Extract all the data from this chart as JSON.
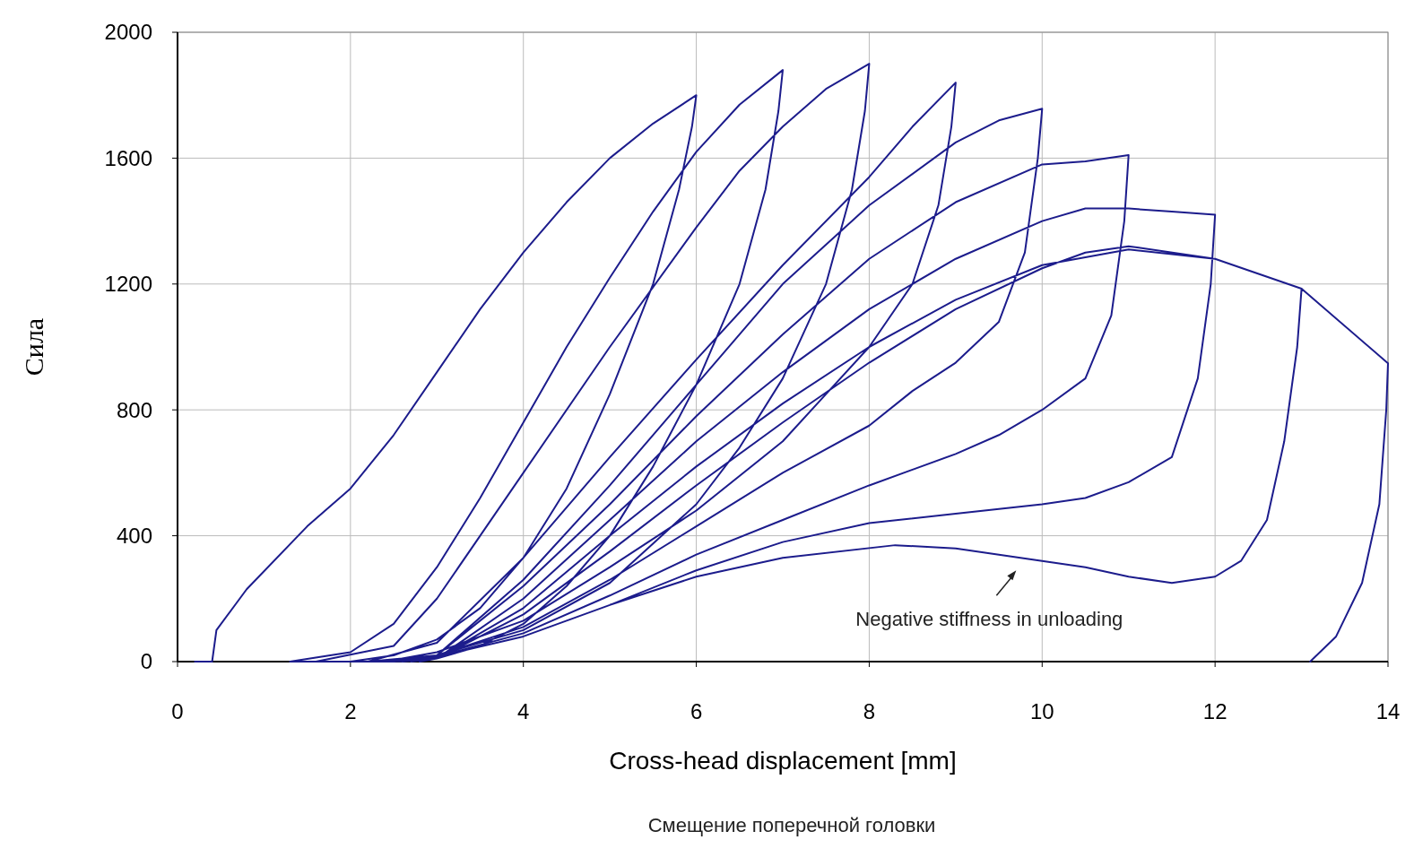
{
  "chart_data": {
    "type": "line",
    "xlabel": "Cross-head displacement [mm]",
    "ylabel": "Сила",
    "xlim": [
      0,
      14
    ],
    "ylim": [
      0,
      2000
    ],
    "xticks": [
      0,
      2,
      4,
      6,
      8,
      10,
      12,
      14
    ],
    "yticks": [
      0,
      400,
      800,
      1200,
      1600,
      2000
    ],
    "grid": true,
    "line_style": "solid",
    "marker": "none",
    "annotations": [
      "Negative stiffness in unloading",
      "Смещение поперечной головки"
    ],
    "series": [
      {
        "color": "#1c1c8c",
        "x": [
          0.2,
          0.4,
          0.45,
          0.8,
          1.5,
          2,
          2.5,
          3,
          3.5,
          4,
          4.5,
          5,
          5.5,
          6,
          5.95,
          5.8,
          5.5,
          5,
          4.5,
          4,
          3.5,
          3,
          2.5,
          2,
          1.3,
          2,
          2.5,
          3,
          3.5,
          4,
          4.5,
          5,
          5.5,
          6,
          6.5,
          7,
          6.95,
          6.8,
          6.5,
          6,
          5.5,
          5,
          4.5,
          4,
          3.5,
          3,
          2.5,
          1.6,
          2.5,
          3,
          3.5,
          4,
          5,
          6,
          6.5,
          7,
          7.5,
          8,
          7.95,
          7.8,
          7.5,
          7,
          6.5,
          6,
          5,
          4,
          3,
          2.2,
          3,
          4,
          5,
          6,
          7,
          8,
          8.5,
          9,
          8.95,
          8.8,
          8.5,
          8,
          7.5,
          7,
          6,
          5,
          4,
          3,
          2.4,
          3,
          4,
          5,
          6,
          7,
          8,
          9,
          9.5,
          10,
          9.95,
          9.8,
          9.5,
          9,
          8.5,
          8,
          7,
          6,
          5,
          4,
          3,
          2.5,
          3,
          4,
          5,
          6,
          7,
          8,
          9,
          10,
          10.5,
          11,
          10.95,
          10.8,
          10.5,
          10,
          9.5,
          9,
          8,
          7,
          6,
          5,
          4,
          3,
          2.6,
          3,
          4,
          5,
          6,
          7,
          8,
          9,
          10,
          10.5,
          11,
          11.5,
          12,
          11.95,
          11.8,
          11.5,
          11,
          10.5,
          10,
          9,
          8,
          7,
          6,
          5,
          4,
          3,
          2.7,
          3,
          4,
          5,
          6,
          7,
          8,
          9,
          10,
          11,
          12,
          13,
          12.95,
          12.8,
          12.6,
          12.3,
          12,
          11.5,
          11,
          10.5,
          10,
          9.5,
          9,
          8.3,
          7,
          6,
          5,
          4,
          3,
          2.8,
          3,
          4,
          5,
          6,
          7,
          8,
          9,
          10,
          10.5,
          11,
          12,
          13,
          14,
          13.98,
          13.9,
          13.7,
          13.4,
          13.1
        ],
        "values": [
          0,
          0,
          100,
          230,
          430,
          550,
          720,
          920,
          1120,
          1300,
          1460,
          1600,
          1710,
          1800,
          1700,
          1500,
          1200,
          850,
          550,
          330,
          170,
          70,
          20,
          0,
          0,
          30,
          120,
          300,
          520,
          760,
          1000,
          1220,
          1430,
          1620,
          1770,
          1880,
          1750,
          1500,
          1200,
          880,
          620,
          400,
          240,
          120,
          50,
          10,
          0,
          0,
          50,
          200,
          400,
          600,
          1000,
          1380,
          1560,
          1700,
          1820,
          1900,
          1750,
          1500,
          1200,
          900,
          680,
          500,
          250,
          100,
          20,
          0,
          60,
          330,
          650,
          960,
          1260,
          1540,
          1700,
          1840,
          1700,
          1450,
          1200,
          1000,
          850,
          700,
          480,
          300,
          130,
          30,
          0,
          20,
          260,
          560,
          880,
          1200,
          1450,
          1650,
          1720,
          1757,
          1600,
          1300,
          1080,
          950,
          860,
          750,
          600,
          430,
          260,
          110,
          20,
          0,
          20,
          240,
          500,
          780,
          1040,
          1280,
          1460,
          1580,
          1590,
          1610,
          1400,
          1100,
          900,
          800,
          720,
          660,
          560,
          450,
          340,
          210,
          90,
          15,
          0,
          10,
          200,
          450,
          700,
          920,
          1120,
          1280,
          1400,
          1440,
          1440,
          1430,
          1420,
          1200,
          900,
          650,
          570,
          520,
          500,
          470,
          440,
          380,
          290,
          180,
          80,
          15,
          0,
          10,
          170,
          400,
          620,
          820,
          1000,
          1150,
          1260,
          1310,
          1280,
          1185,
          1000,
          700,
          450,
          320,
          270,
          250,
          270,
          300,
          320,
          340,
          360,
          370,
          330,
          270,
          180,
          80,
          15,
          0,
          10,
          150,
          350,
          560,
          760,
          950,
          1120,
          1250,
          1300,
          1320,
          1280,
          1185,
          948,
          800,
          500,
          250,
          80,
          0
        ]
      }
    ]
  }
}
